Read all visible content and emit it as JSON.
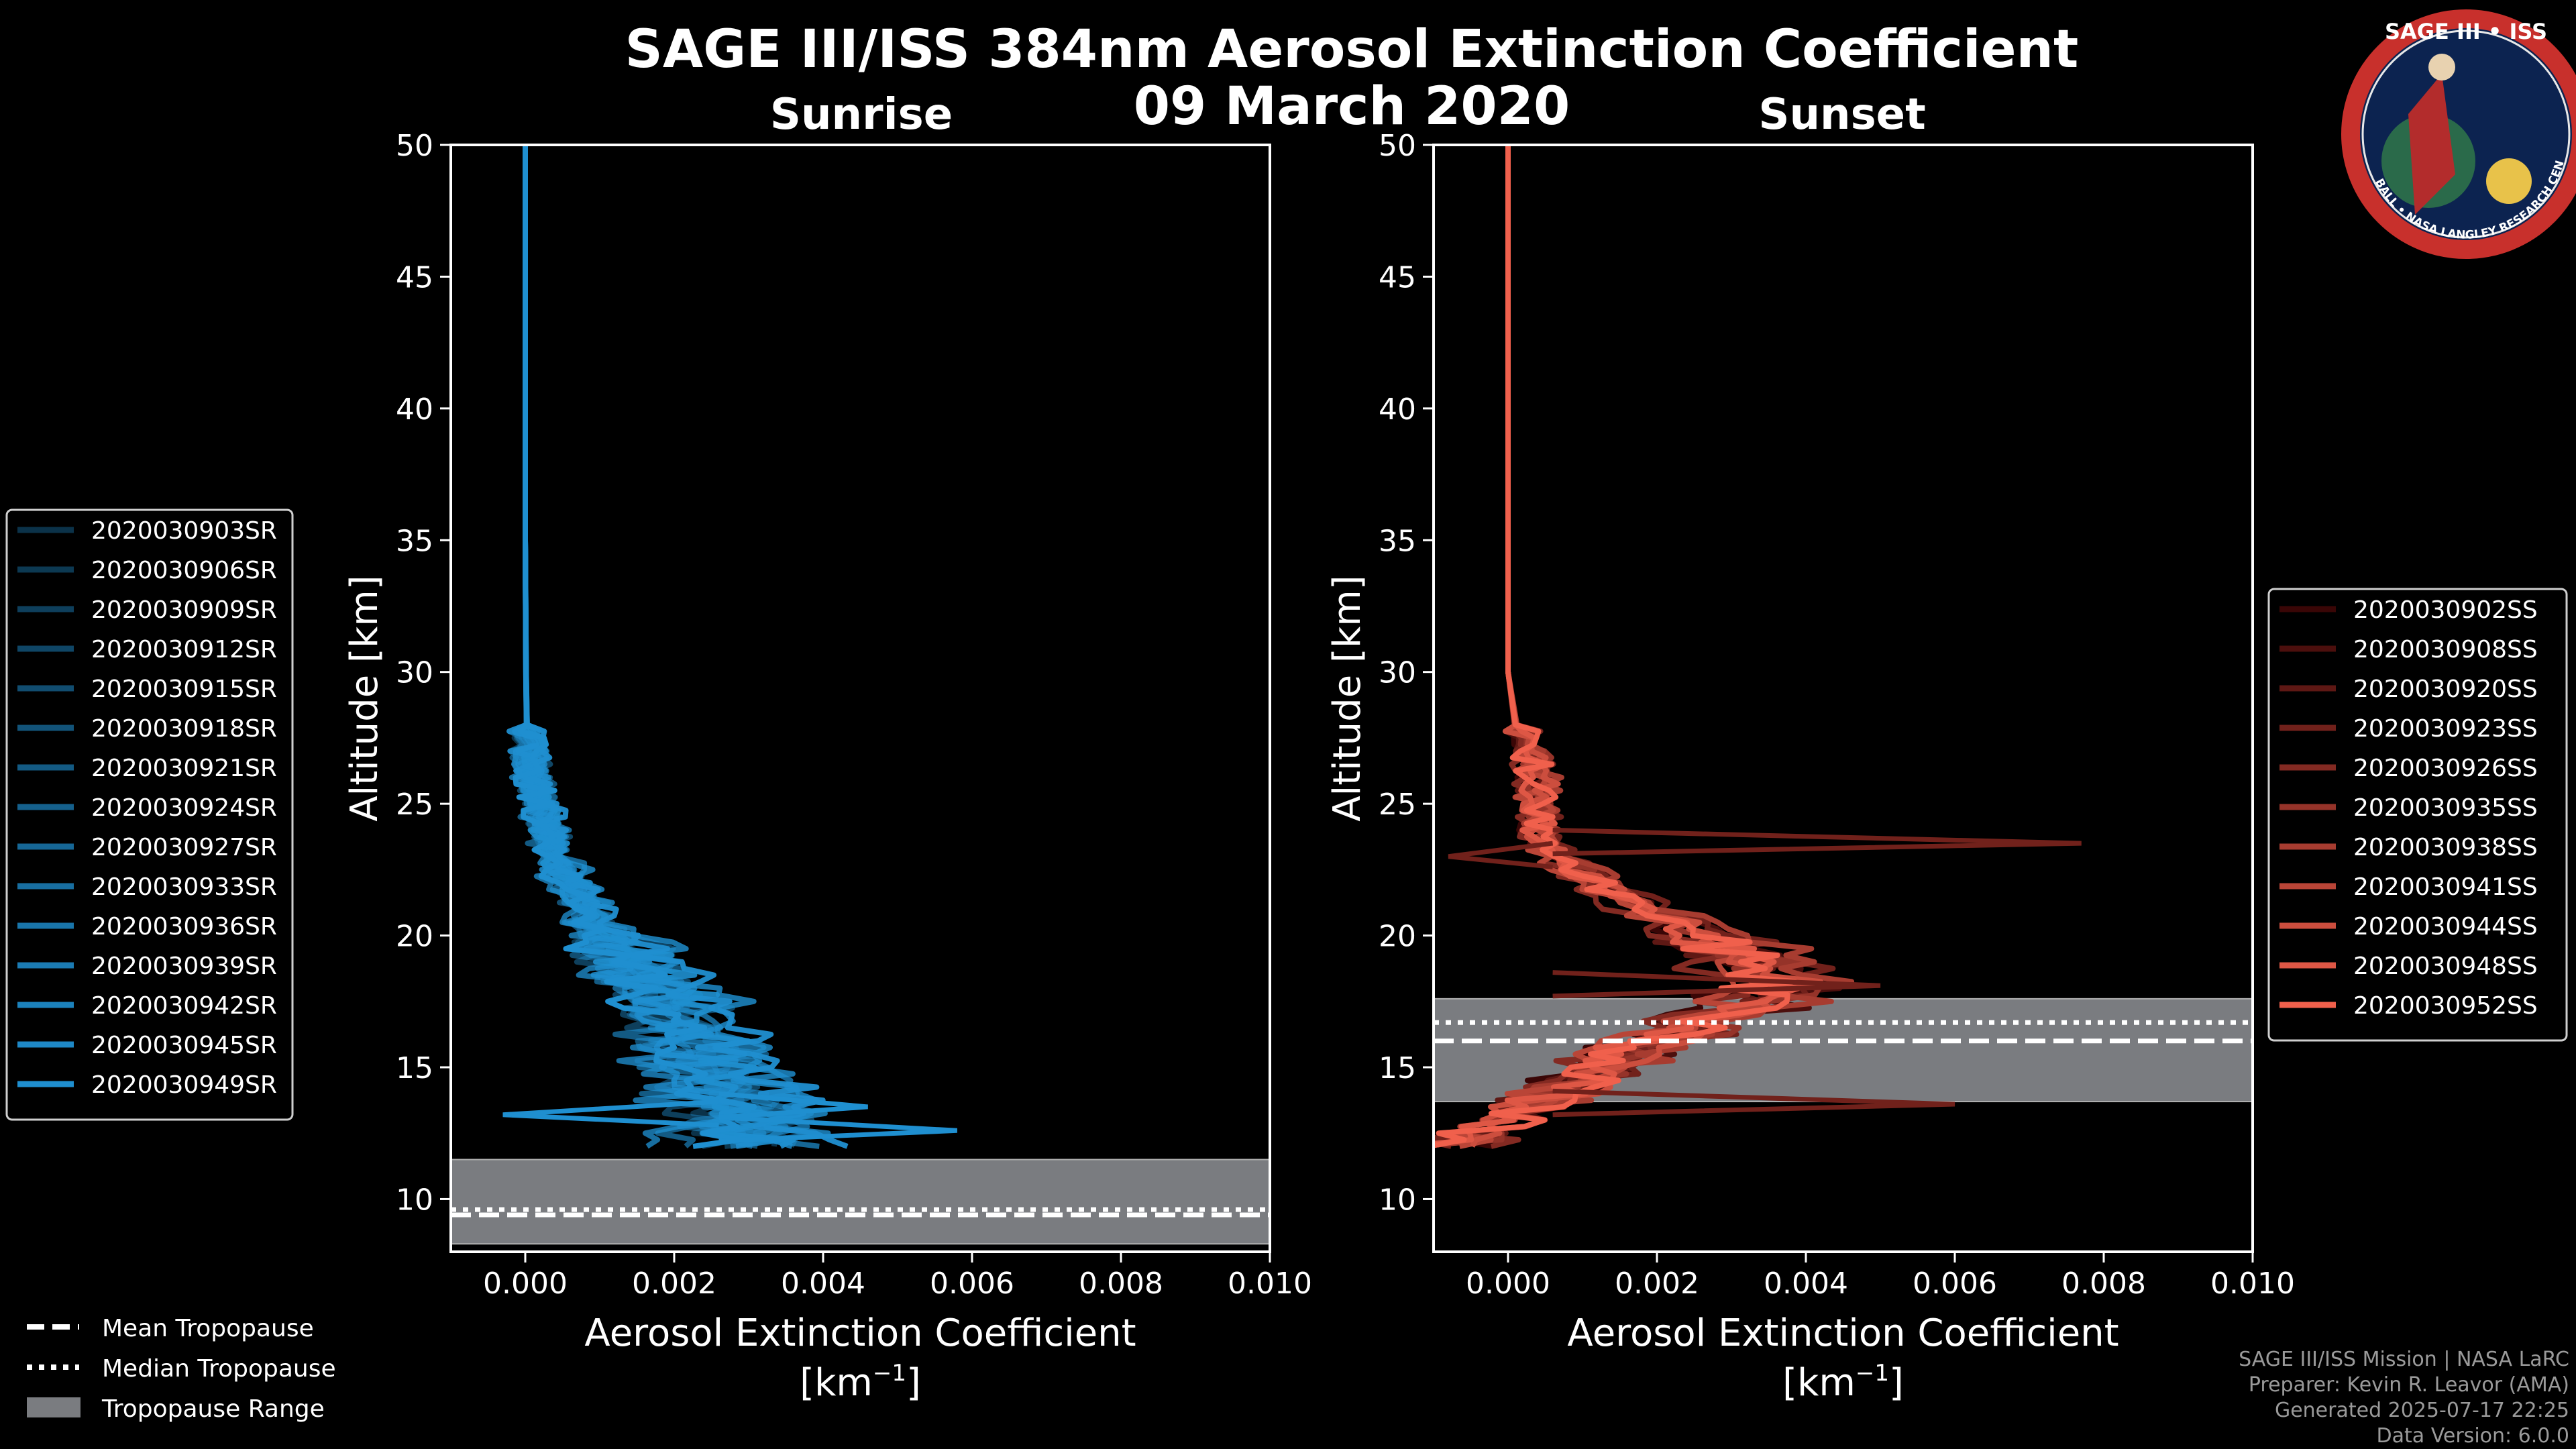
{
  "title_line1": "SAGE III/ISS 384nm Aerosol Extinction Coefficient",
  "title_line2": "09 March 2020",
  "colors": {
    "sunrise": "#1f8fd0",
    "sunset_light": "#f0604c",
    "sunset_dark": "#3a0606",
    "tropo_range": "#7a7c80"
  },
  "chart_data": [
    {
      "type": "line",
      "title": "Sunrise",
      "xlabel": "Aerosol Extinction Coefficient",
      "xunit": "[km",
      "xunit_sup": "−1",
      "xunit_close": "]",
      "ylabel": "Altitude [km]",
      "xlim": [
        -0.001,
        0.01
      ],
      "ylim": [
        8,
        50
      ],
      "xticks": [
        "0.000",
        "0.002",
        "0.004",
        "0.006",
        "0.008",
        "0.010"
      ],
      "yticks": [
        "10",
        "15",
        "20",
        "25",
        "30",
        "35",
        "40",
        "45",
        "50"
      ],
      "tropopause": {
        "mean": 9.4,
        "median": 9.6,
        "range": [
          8.3,
          11.5
        ]
      },
      "base_profile": {
        "alt": [
          12,
          13,
          14,
          15,
          16,
          17,
          18,
          19,
          20,
          21,
          22,
          23,
          24,
          25,
          26,
          27,
          28,
          30,
          35,
          40,
          45,
          50
        ],
        "ext": [
          0.003,
          0.0029,
          0.0027,
          0.0025,
          0.0023,
          0.0021,
          0.0018,
          0.0014,
          0.0011,
          0.0008,
          0.0006,
          0.0004,
          0.0003,
          0.0002,
          0.0001,
          5e-05,
          2e-05,
          1e-05,
          0.0,
          0.0,
          0.0,
          0.0
        ]
      },
      "series": [
        {
          "name": "2020030903SR",
          "scale": 0.95
        },
        {
          "name": "2020030906SR",
          "scale": 1.05
        },
        {
          "name": "2020030909SR",
          "scale": 0.85
        },
        {
          "name": "2020030912SR",
          "scale": 1.15
        },
        {
          "name": "2020030915SR",
          "scale": 0.9
        },
        {
          "name": "2020030918SR",
          "scale": 1.1
        },
        {
          "name": "2020030921SR",
          "scale": 0.8
        },
        {
          "name": "2020030924SR",
          "scale": 1.0
        },
        {
          "name": "2020030927SR",
          "scale": 1.2
        },
        {
          "name": "2020030933SR",
          "scale": 0.75
        },
        {
          "name": "2020030936SR",
          "scale": 1.3
        },
        {
          "name": "2020030939SR",
          "scale": 0.95
        },
        {
          "name": "2020030942SR",
          "scale": 1.05
        },
        {
          "name": "2020030945SR",
          "scale": 1.25
        },
        {
          "name": "2020030949SR",
          "scale": 0.88
        }
      ],
      "outliers": [
        {
          "alt": 12.6,
          "ext": 0.0058
        },
        {
          "alt": 13.2,
          "ext": -0.0003
        },
        {
          "alt": 13.5,
          "ext": 0.0046
        }
      ]
    },
    {
      "type": "line",
      "title": "Sunset",
      "xlabel": "Aerosol Extinction Coefficient",
      "xunit": "[km",
      "xunit_sup": "−1",
      "xunit_close": "]",
      "ylabel": "Altitude [km]",
      "xlim": [
        -0.001,
        0.01
      ],
      "ylim": [
        8,
        50
      ],
      "xticks": [
        "0.000",
        "0.002",
        "0.004",
        "0.006",
        "0.008",
        "0.010"
      ],
      "yticks": [
        "10",
        "15",
        "20",
        "25",
        "30",
        "35",
        "40",
        "45",
        "50"
      ],
      "tropopause": {
        "mean": 16.0,
        "median": 16.7,
        "range": [
          13.7,
          17.6
        ]
      },
      "base_profile": {
        "alt": [
          12,
          13,
          14,
          15,
          16,
          17,
          18,
          19,
          20,
          21,
          22,
          23,
          24,
          25,
          26,
          27,
          28,
          30,
          35,
          40,
          45,
          50
        ],
        "ext": [
          -0.0008,
          0.0001,
          0.0006,
          0.0012,
          0.002,
          0.003,
          0.0035,
          0.0033,
          0.0025,
          0.0018,
          0.0012,
          0.0006,
          0.0004,
          0.0004,
          0.0004,
          0.0003,
          0.0001,
          0.0,
          0.0,
          0.0,
          0.0,
          0.0
        ]
      },
      "series": [
        {
          "name": "2020030902SS",
          "scale": 0.9
        },
        {
          "name": "2020030908SS",
          "scale": 1.1
        },
        {
          "name": "2020030920SS",
          "scale": 0.95
        },
        {
          "name": "2020030923SS",
          "scale": 1.15
        },
        {
          "name": "2020030926SS",
          "scale": 0.85
        },
        {
          "name": "2020030935SS",
          "scale": 1.05
        },
        {
          "name": "2020030938SS",
          "scale": 1.2
        },
        {
          "name": "2020030941SS",
          "scale": 0.92
        },
        {
          "name": "2020030944SS",
          "scale": 1.08
        },
        {
          "name": "2020030948SS",
          "scale": 1.0
        },
        {
          "name": "2020030952SS",
          "scale": 0.98
        }
      ],
      "outliers": [
        {
          "alt": 23.5,
          "ext": 0.0077
        },
        {
          "alt": 13.6,
          "ext": 0.006
        },
        {
          "alt": 23.0,
          "ext": -0.0008
        },
        {
          "alt": 18.1,
          "ext": 0.005
        }
      ]
    }
  ],
  "tropopause_legend": {
    "mean": "Mean Tropopause",
    "median": "Median Tropopause",
    "range": "Tropopause Range"
  },
  "logo": {
    "title": "SAGE III • ISS",
    "ring_text": "BALL • NASA LANGLEY RESEARCH CENTER • TAS • ESA"
  },
  "credits": [
    "SAGE III/ISS Mission | NASA LaRC",
    "Preparer: Kevin R. Leavor (AMA)",
    "Generated 2025-07-17 22:25",
    "Data Version: 6.0.0"
  ]
}
